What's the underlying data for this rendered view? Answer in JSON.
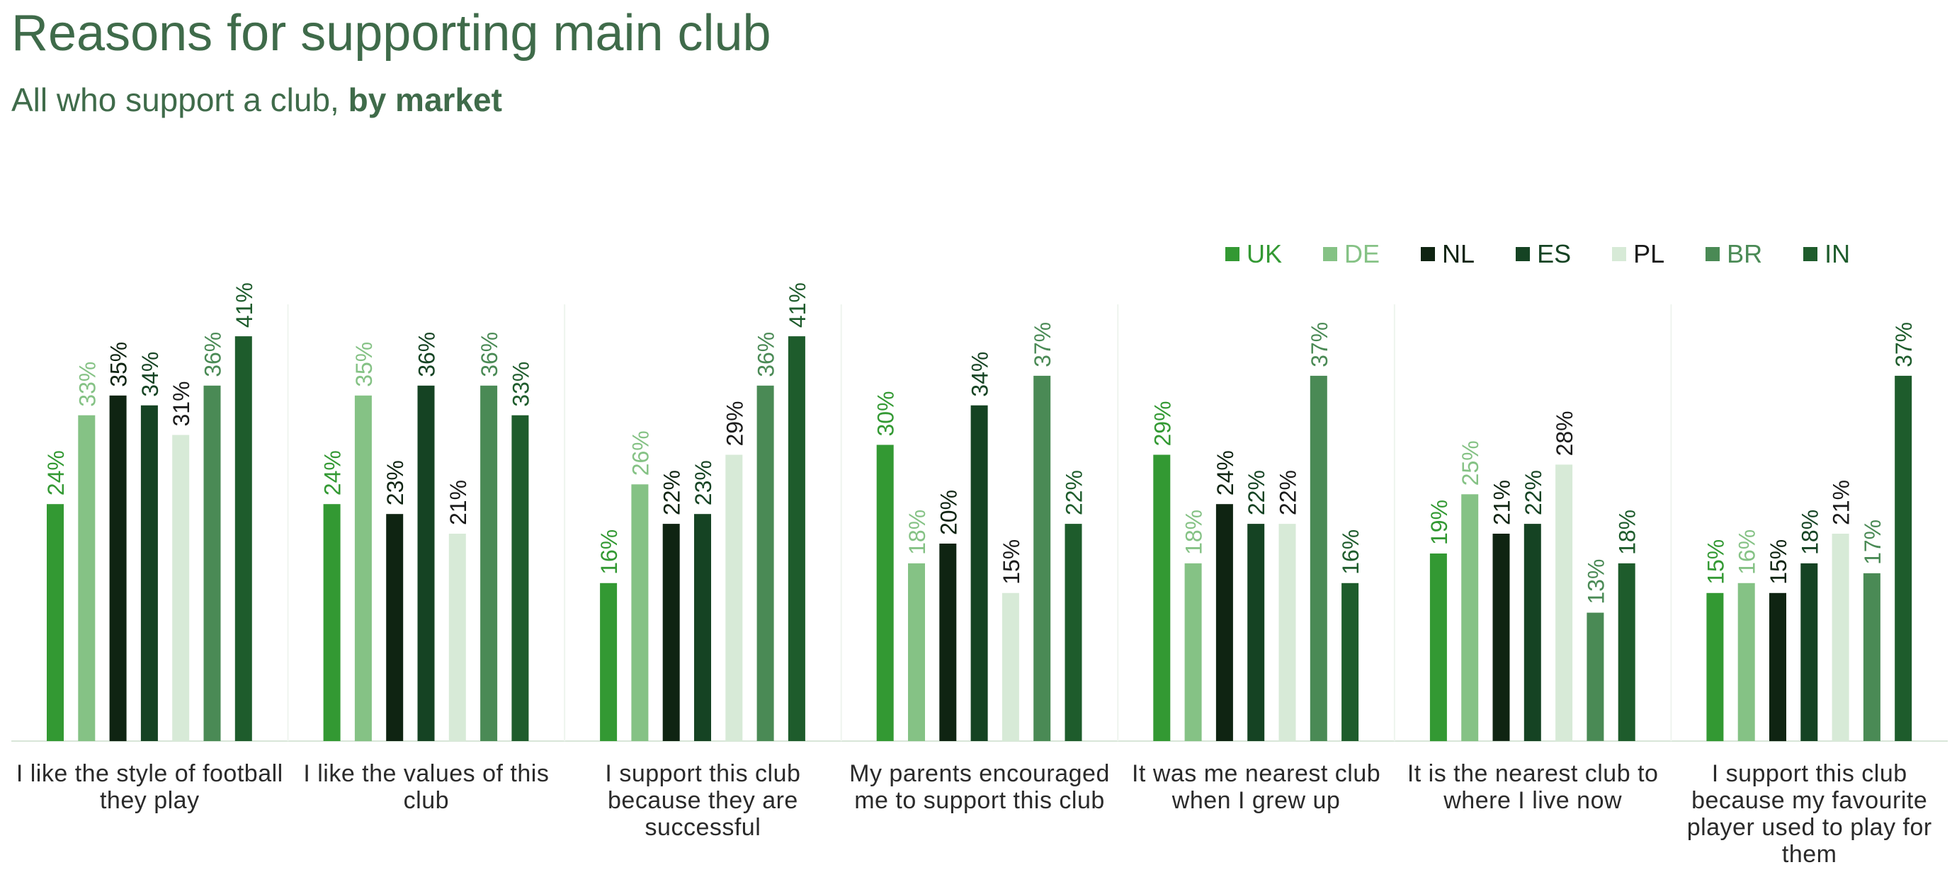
{
  "chart_data": {
    "type": "bar",
    "title": "Reasons for supporting main club",
    "subtitle_prefix": "All who support a club, ",
    "subtitle_bold": "by market",
    "ylim": [
      0,
      45
    ],
    "categories": [
      "I like the style of football they play",
      "I like the values of this club",
      "I support this club because they are successful",
      "My parents encouraged me to support this club",
      "It was me nearest club when I grew up",
      "It is the nearest club to where I live now",
      "I support this club because my favourite player used to play for them"
    ],
    "series": [
      {
        "name": "UK",
        "color": "#339933",
        "label_color": "#339933",
        "values": [
          24,
          24,
          16,
          30,
          29,
          19,
          15
        ]
      },
      {
        "name": "DE",
        "color": "#85c285",
        "label_color": "#85c285",
        "values": [
          33,
          35,
          26,
          18,
          18,
          25,
          16
        ]
      },
      {
        "name": "NL",
        "color": "#0f2412",
        "label_color": "#0f2412",
        "values": [
          35,
          23,
          22,
          20,
          24,
          21,
          15
        ]
      },
      {
        "name": "ES",
        "color": "#154323",
        "label_color": "#154323",
        "values": [
          34,
          36,
          23,
          34,
          22,
          22,
          18
        ]
      },
      {
        "name": "PL",
        "color": "#d7ead7",
        "label_color": "#1a1a1a",
        "values": [
          31,
          21,
          29,
          15,
          22,
          28,
          21
        ]
      },
      {
        "name": "BR",
        "color": "#4a8a55",
        "label_color": "#4a8a55",
        "values": [
          36,
          36,
          36,
          37,
          37,
          13,
          17
        ]
      },
      {
        "name": "IN",
        "color": "#1e5c2c",
        "label_color": "#1e5c2c",
        "values": [
          41,
          33,
          41,
          22,
          16,
          18,
          37
        ]
      }
    ],
    "value_suffix": "%",
    "legend_position": "top-right",
    "grid": false
  }
}
